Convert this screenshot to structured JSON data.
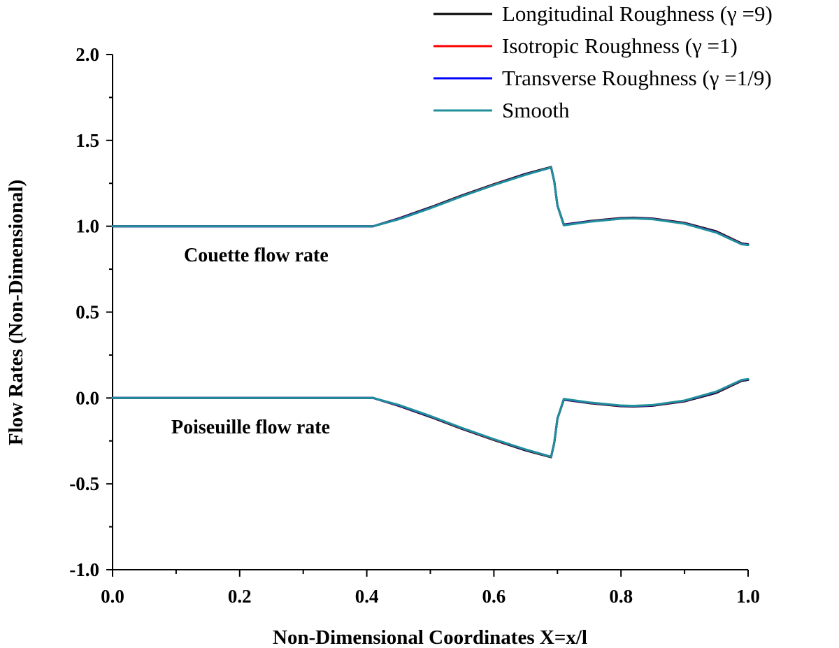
{
  "chart_data": {
    "type": "line",
    "xlabel": "Non-Dimensional Coordinates X=x/l",
    "ylabel": "Flow Rates (Non-Dimensional)",
    "xlim": [
      0.0,
      1.0
    ],
    "ylim": [
      -1.0,
      2.0
    ],
    "x_ticks": [
      "0.0",
      "0.2",
      "0.4",
      "0.6",
      "0.8",
      "1.0"
    ],
    "x_tick_values": [
      0.0,
      0.2,
      0.4,
      0.6,
      0.8,
      1.0
    ],
    "y_ticks": [
      "-1.0",
      "-0.5",
      "0.0",
      "0.5",
      "1.0",
      "1.5",
      "2.0"
    ],
    "y_tick_values": [
      -1.0,
      -0.5,
      0.0,
      0.5,
      1.0,
      1.5,
      2.0
    ],
    "legend_position": "top-right",
    "annotations": [
      {
        "text": "Couette flow rate",
        "x": 0.28,
        "y": 0.83
      },
      {
        "text": "Poiseuille flow rate",
        "x": 0.28,
        "y": -0.17
      }
    ],
    "x": [
      0.0,
      0.1,
      0.2,
      0.3,
      0.4,
      0.41,
      0.45,
      0.5,
      0.55,
      0.6,
      0.65,
      0.69,
      0.695,
      0.7,
      0.71,
      0.75,
      0.8,
      0.82,
      0.85,
      0.9,
      0.95,
      0.99,
      1.0
    ],
    "series": [
      {
        "group": "couette",
        "name": "Longitudinal Roughness (γ =9)",
        "color": "#000000",
        "values": [
          1.0,
          1.0,
          1.0,
          1.0,
          1.0,
          1.0,
          1.045,
          1.11,
          1.18,
          1.245,
          1.305,
          1.345,
          1.26,
          1.12,
          1.01,
          1.03,
          1.048,
          1.05,
          1.045,
          1.02,
          0.97,
          0.9,
          0.895
        ]
      },
      {
        "group": "couette",
        "name": "Isotropic Roughness (γ =1)",
        "color": "#ff0000",
        "values": [
          1.0,
          1.0,
          1.0,
          1.0,
          1.0,
          1.0,
          1.043,
          1.107,
          1.177,
          1.242,
          1.302,
          1.343,
          1.26,
          1.12,
          1.008,
          1.028,
          1.046,
          1.048,
          1.043,
          1.017,
          0.966,
          0.897,
          0.892
        ]
      },
      {
        "group": "couette",
        "name": "Transverse Roughness (γ =1/9)",
        "color": "#0000ff",
        "values": [
          1.0,
          1.0,
          1.0,
          1.0,
          1.0,
          1.0,
          1.042,
          1.106,
          1.176,
          1.241,
          1.301,
          1.342,
          1.26,
          1.12,
          1.007,
          1.027,
          1.045,
          1.047,
          1.042,
          1.016,
          0.965,
          0.896,
          0.891
        ]
      },
      {
        "group": "couette",
        "name": "Smooth",
        "color": "#1f8f99",
        "values": [
          1.0,
          1.0,
          1.0,
          1.0,
          1.0,
          1.0,
          1.04,
          1.105,
          1.175,
          1.24,
          1.3,
          1.342,
          1.26,
          1.12,
          1.005,
          1.026,
          1.044,
          1.046,
          1.041,
          1.015,
          0.963,
          0.895,
          0.89
        ]
      },
      {
        "group": "poiseuille",
        "name": "Longitudinal Roughness (γ =9)",
        "color": "#000000",
        "values": [
          0.0,
          0.0,
          0.0,
          0.0,
          0.0,
          0.0,
          -0.045,
          -0.11,
          -0.18,
          -0.245,
          -0.305,
          -0.345,
          -0.26,
          -0.12,
          -0.01,
          -0.03,
          -0.048,
          -0.05,
          -0.045,
          -0.02,
          0.03,
          0.1,
          0.105
        ]
      },
      {
        "group": "poiseuille",
        "name": "Isotropic Roughness (γ =1)",
        "color": "#ff0000",
        "values": [
          0.0,
          0.0,
          0.0,
          0.0,
          0.0,
          0.0,
          -0.043,
          -0.107,
          -0.177,
          -0.242,
          -0.302,
          -0.343,
          -0.26,
          -0.12,
          -0.008,
          -0.028,
          -0.046,
          -0.048,
          -0.043,
          -0.017,
          0.034,
          0.103,
          0.108
        ]
      },
      {
        "group": "poiseuille",
        "name": "Transverse Roughness (γ =1/9)",
        "color": "#0000ff",
        "values": [
          0.0,
          0.0,
          0.0,
          0.0,
          0.0,
          0.0,
          -0.042,
          -0.106,
          -0.176,
          -0.241,
          -0.301,
          -0.342,
          -0.26,
          -0.12,
          -0.007,
          -0.027,
          -0.045,
          -0.047,
          -0.042,
          -0.016,
          0.035,
          0.104,
          0.109
        ]
      },
      {
        "group": "poiseuille",
        "name": "Smooth",
        "color": "#1f8f99",
        "values": [
          0.0,
          0.0,
          0.0,
          0.0,
          0.0,
          0.0,
          -0.04,
          -0.105,
          -0.175,
          -0.24,
          -0.3,
          -0.342,
          -0.26,
          -0.12,
          -0.005,
          -0.026,
          -0.044,
          -0.046,
          -0.041,
          -0.015,
          0.037,
          0.105,
          0.11
        ]
      }
    ],
    "legend": [
      {
        "label": "Longitudinal Roughness (γ =9)",
        "color": "#000000"
      },
      {
        "label": "Isotropic Roughness (γ =1)",
        "color": "#ff0000"
      },
      {
        "label": "Transverse Roughness (γ =1/9)",
        "color": "#0000ff"
      },
      {
        "label": "Smooth",
        "color": "#1f8f99"
      }
    ]
  }
}
